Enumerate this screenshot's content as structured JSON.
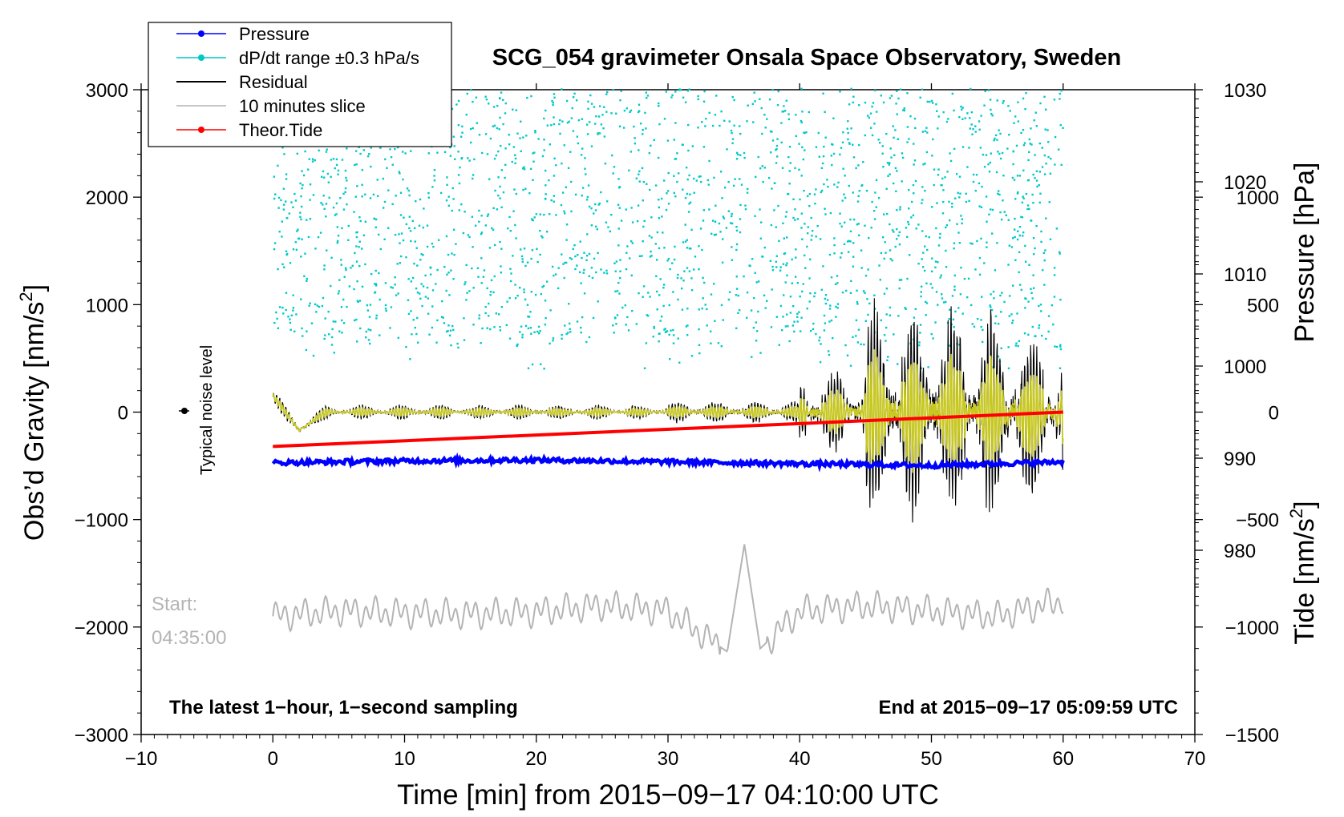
{
  "chart_data": {
    "type": "line",
    "title": "SCG_054 gravimeter Onsala Space Observatory, Sweden",
    "xlabel": "Time [min] from 2015−09−17 04:10:00 UTC",
    "ylabel_left": "Obs’d Gravity [nm/s",
    "ylabel_left_sup": "2",
    "ylabel_left_tail": "]",
    "ylabel_right_top": "Pressure [hPa]",
    "ylabel_right_bottom": "Tide [nm/s",
    "ylabel_right_bottom_sup": "2",
    "ylabel_right_bottom_tail": "]",
    "xlim": [
      -10,
      70
    ],
    "ylim_left": [
      -3000,
      3000
    ],
    "pressure_lim": [
      960,
      1030
    ],
    "tide_lim": [
      -1500,
      1500
    ],
    "x_ticks": [
      -10,
      0,
      10,
      20,
      30,
      40,
      50,
      60,
      70
    ],
    "x_tick_labels": [
      "−10",
      "0",
      "10",
      "20",
      "30",
      "40",
      "50",
      "60",
      "70"
    ],
    "y_left_ticks": [
      -3000,
      -2000,
      -1000,
      0,
      1000,
      2000,
      3000
    ],
    "y_left_tick_labels": [
      "−3000",
      "−2000",
      "−1000",
      "0",
      "1000",
      "2000",
      "3000"
    ],
    "pressure_ticks": [
      980,
      990,
      1000,
      1010,
      1020,
      1030
    ],
    "pressure_tick_labels": [
      "980",
      "990",
      "1000",
      "1010",
      "1020",
      "1030"
    ],
    "tide_ticks": [
      -1500,
      -1000,
      -500,
      0,
      500,
      1000
    ],
    "tide_tick_labels": [
      "−1500",
      "−1000",
      "−500",
      "0",
      "500",
      "1000"
    ],
    "legend": [
      {
        "label": "Pressure",
        "color": "#0000ff",
        "marker": true
      },
      {
        "label": "dP/dt range ±0.3 hPa/s",
        "color": "#00c8c8",
        "marker": true
      },
      {
        "label": "Residual",
        "color": "#000000",
        "marker": false
      },
      {
        "label": "10 minutes slice",
        "color": "#b4b4b4",
        "marker": false
      },
      {
        "label": "Theor.Tide",
        "color": "#ff0000",
        "marker": true
      }
    ],
    "series": [
      {
        "name": "Pressure",
        "axis": "pressure",
        "color": "#0000ff",
        "x": [
          0,
          10,
          20,
          30,
          40,
          50,
          60
        ],
        "values": [
          989.5,
          989.7,
          989.8,
          989.6,
          989.4,
          989.2,
          989.6
        ]
      },
      {
        "name": "Residual",
        "axis": "left",
        "color": "#000000",
        "x": [
          0,
          2,
          5,
          10,
          15,
          20,
          25,
          30,
          35,
          40,
          45,
          48,
          50,
          53,
          56,
          60
        ],
        "values": [
          150,
          -180,
          20,
          -30,
          40,
          -20,
          30,
          0,
          40,
          20,
          700,
          1200,
          -1100,
          1100,
          -900,
          -400
        ]
      },
      {
        "name": "10 minutes slice",
        "axis": "left",
        "color": "#b4b4b4",
        "x": [
          0,
          5,
          10,
          15,
          20,
          25,
          30,
          34.5,
          35.8,
          37,
          40,
          45,
          50,
          55,
          60
        ],
        "values": [
          -1900,
          -1850,
          -1870,
          -1880,
          -1860,
          -1800,
          -1850,
          -2230,
          -1230,
          -2200,
          -1850,
          -1800,
          -1850,
          -1900,
          -1750
        ]
      },
      {
        "name": "Theor.Tide",
        "axis": "tide",
        "color": "#ff0000",
        "x": [
          0,
          60
        ],
        "values": [
          -160,
          0
        ]
      }
    ],
    "noise_marker": {
      "label": "Typical noise level",
      "x": -7,
      "y": 0
    },
    "annotations": {
      "start_line1": "Start:",
      "start_line2": "04:35:00",
      "bottom_left": "The latest 1−hour, 1−second sampling",
      "bottom_right": "End at 2015−09−17 05:09:59 UTC"
    }
  },
  "colors": {
    "pressure": "#0000ff",
    "dpdt": "#00c8c8",
    "residual": "#000000",
    "filtered": "#c8c81e",
    "slice": "#b4b4b4",
    "tide": "#ff0000"
  }
}
